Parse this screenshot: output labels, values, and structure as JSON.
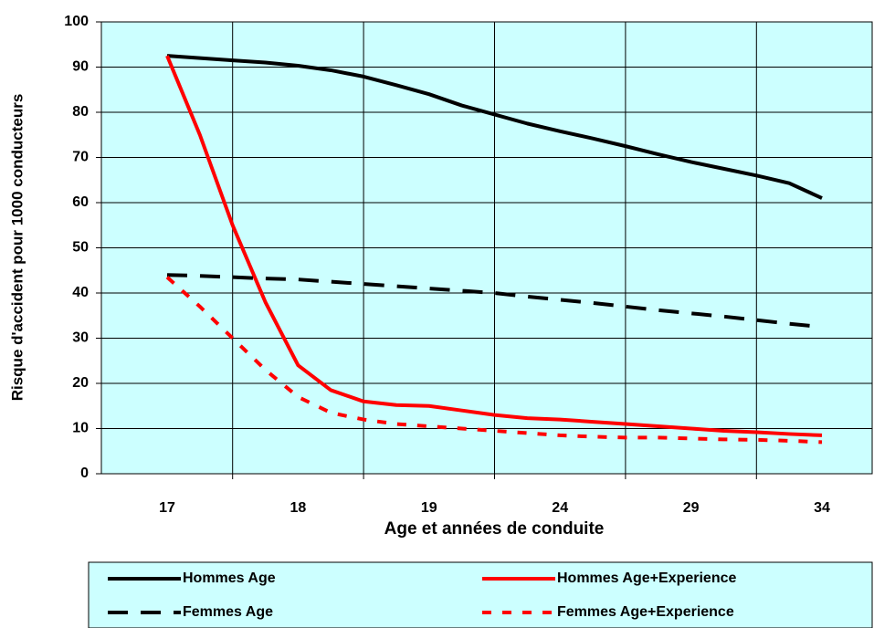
{
  "chart_data": {
    "type": "line",
    "xlabel": "Age et années de conduite",
    "ylabel": "Risque d'accident pour 1000 conducteurs",
    "categories": [
      "17",
      null,
      null,
      null,
      "18",
      null,
      null,
      null,
      "19",
      null,
      null,
      null,
      "24",
      null,
      null,
      null,
      "29",
      null,
      null,
      null,
      "34"
    ],
    "ylim": [
      0,
      100
    ],
    "yticks": [
      0,
      10,
      20,
      30,
      40,
      50,
      60,
      70,
      80,
      90,
      100
    ],
    "grid": true,
    "background": "#ccffff",
    "series": [
      {
        "name": "Hommes Age",
        "color": "#000000",
        "style": "solid",
        "values": [
          92.5,
          92,
          91.5,
          91,
          90.3,
          89.3,
          87.9,
          86,
          84,
          81.5,
          79.5,
          77.5,
          75.8,
          74.2,
          72.5,
          70.7,
          69,
          67.5,
          66,
          64.3,
          61
        ]
      },
      {
        "name": "Hommes Age+Experience",
        "color": "#ff0000",
        "style": "solid",
        "values": [
          92.5,
          75,
          55,
          38,
          24,
          18.5,
          16,
          15.2,
          15,
          14,
          13,
          12.3,
          12,
          11.5,
          11,
          10.5,
          10,
          9.5,
          9.2,
          8.8,
          8.5
        ]
      },
      {
        "name": "Femmes Age",
        "color": "#000000",
        "style": "dashed",
        "values": [
          44,
          43.8,
          43.5,
          43.2,
          43,
          42.5,
          42,
          41.5,
          41,
          40.5,
          40,
          39.2,
          38.5,
          37.8,
          37,
          36.2,
          35.5,
          34.8,
          34,
          33.2,
          32.5
        ]
      },
      {
        "name": "Femmes Age+Experience",
        "color": "#ff0000",
        "style": "dotted",
        "values": [
          43.5,
          37,
          30,
          23,
          17,
          13.5,
          12,
          11,
          10.5,
          10,
          9.5,
          9,
          8.5,
          8.2,
          8,
          8,
          7.8,
          7.6,
          7.5,
          7.3,
          7
        ]
      }
    ]
  }
}
